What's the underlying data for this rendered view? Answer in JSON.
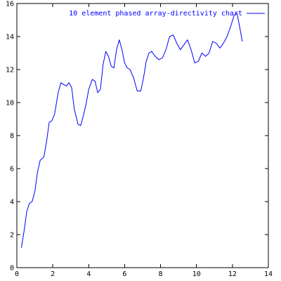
{
  "chart_data": {
    "type": "line",
    "title": "",
    "xlabel": "",
    "ylabel": "",
    "xlim": [
      0,
      14
    ],
    "ylim": [
      0,
      16
    ],
    "x_ticks": [
      0,
      2,
      4,
      6,
      8,
      10,
      12,
      14
    ],
    "y_ticks": [
      0,
      2,
      4,
      6,
      8,
      10,
      12,
      14,
      16
    ],
    "tick_labels_x": [
      "0",
      "2",
      "4",
      "6",
      "8",
      "10",
      "12",
      "14"
    ],
    "tick_labels_y": [
      "0",
      "2",
      "4",
      "6",
      "8",
      "10",
      "12",
      "14",
      "16"
    ],
    "grid": false,
    "legend_position": "top-right",
    "series": [
      {
        "name": "10 element phased array-directivity chart",
        "color": "#0000ff",
        "x": [
          0.25,
          0.4,
          0.55,
          0.7,
          0.85,
          1.0,
          1.15,
          1.3,
          1.5,
          1.65,
          1.8,
          1.95,
          2.1,
          2.3,
          2.45,
          2.6,
          2.75,
          2.9,
          3.05,
          3.2,
          3.4,
          3.55,
          3.7,
          3.85,
          4.0,
          4.2,
          4.35,
          4.5,
          4.65,
          4.8,
          4.95,
          5.1,
          5.25,
          5.4,
          5.55,
          5.7,
          5.85,
          6.0,
          6.15,
          6.3,
          6.5,
          6.7,
          6.9,
          7.05,
          7.2,
          7.35,
          7.5,
          7.7,
          7.9,
          8.1,
          8.3,
          8.5,
          8.7,
          8.9,
          9.1,
          9.3,
          9.5,
          9.7,
          9.9,
          10.1,
          10.3,
          10.5,
          10.7,
          10.9,
          11.1,
          11.3,
          11.5,
          11.7,
          11.9,
          12.1,
          12.25,
          12.4,
          12.55
        ],
        "values": [
          1.2,
          2.2,
          3.4,
          3.9,
          4.0,
          4.6,
          5.8,
          6.5,
          6.7,
          7.6,
          8.8,
          8.9,
          9.3,
          10.6,
          11.2,
          11.1,
          11.0,
          11.2,
          10.9,
          9.6,
          8.7,
          8.6,
          9.2,
          9.9,
          10.8,
          11.4,
          11.3,
          10.6,
          10.8,
          12.3,
          13.1,
          12.8,
          12.2,
          12.1,
          13.2,
          13.8,
          13.2,
          12.4,
          12.1,
          12.0,
          11.5,
          10.7,
          10.7,
          11.5,
          12.5,
          13.0,
          13.1,
          12.8,
          12.6,
          12.7,
          13.2,
          14.0,
          14.1,
          13.6,
          13.2,
          13.5,
          13.8,
          13.2,
          12.4,
          12.5,
          13.0,
          12.8,
          13.0,
          13.7,
          13.6,
          13.3,
          13.6,
          14.0,
          14.6,
          15.3,
          15.4,
          14.6,
          13.7
        ]
      }
    ]
  }
}
